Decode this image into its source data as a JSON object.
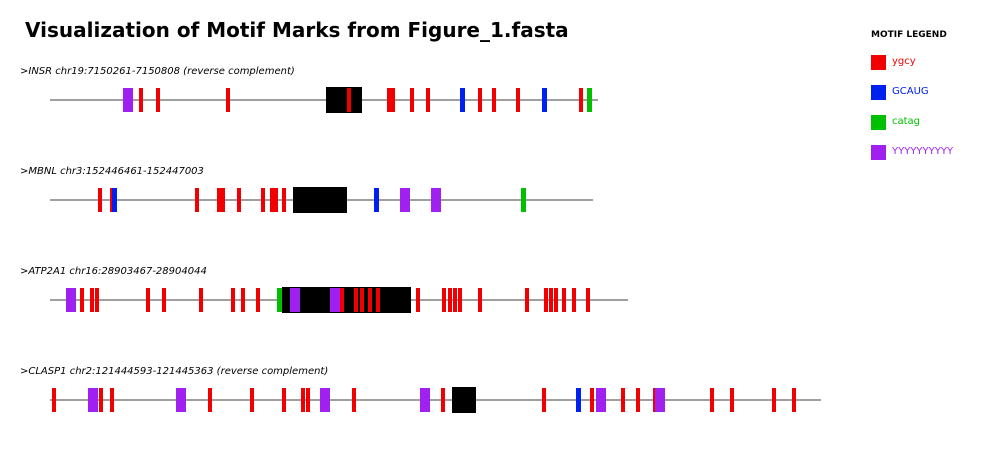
{
  "title": "Visualization of Motif Marks from Figure_1.fasta",
  "legend": {
    "title": "MOTIF LEGEND",
    "items": [
      {
        "label": "ygcy",
        "color": "#f00000"
      },
      {
        "label": "GCAUG",
        "color": "#0020f0"
      },
      {
        "label": "catag",
        "color": "#00c000"
      },
      {
        "label": "YYYYYYYYYY",
        "color": "#a020f0"
      }
    ]
  },
  "exon_color": "#000000",
  "chart_data": {
    "type": "motif-map",
    "sequences": [
      {
        "header": ">INSR chr19:7150261-7150808 (reverse complement)",
        "length": 548,
        "exon": [
          276,
          311
        ],
        "motifs": [
          {
            "motif": "YYYYYYYYYY",
            "start": 73,
            "end": 82
          },
          {
            "motif": "ygcy",
            "start": 89,
            "end": 92
          },
          {
            "motif": "ygcy",
            "start": 106,
            "end": 109
          },
          {
            "motif": "ygcy",
            "start": 176,
            "end": 179
          },
          {
            "motif": "ygcy",
            "start": 297,
            "end": 300
          },
          {
            "motif": "ygcy",
            "start": 337,
            "end": 344
          },
          {
            "motif": "ygcy",
            "start": 360,
            "end": 363
          },
          {
            "motif": "ygcy",
            "start": 376,
            "end": 379
          },
          {
            "motif": "GCAUG",
            "start": 410,
            "end": 414
          },
          {
            "motif": "ygcy",
            "start": 428,
            "end": 431
          },
          {
            "motif": "ygcy",
            "start": 442,
            "end": 445
          },
          {
            "motif": "ygcy",
            "start": 466,
            "end": 469
          },
          {
            "motif": "GCAUG",
            "start": 492,
            "end": 496
          },
          {
            "motif": "ygcy",
            "start": 529,
            "end": 532
          },
          {
            "motif": "catag",
            "start": 537,
            "end": 541
          }
        ]
      },
      {
        "header": ">MBNL chr3:152446461-152447003",
        "length": 543,
        "exon": [
          243,
          296
        ],
        "motifs": [
          {
            "motif": "ygcy",
            "start": 48,
            "end": 51
          },
          {
            "motif": "ygcy",
            "start": 60,
            "end": 63
          },
          {
            "motif": "GCAUG",
            "start": 62,
            "end": 66
          },
          {
            "motif": "ygcy",
            "start": 145,
            "end": 148
          },
          {
            "motif": "ygcy",
            "start": 167,
            "end": 174
          },
          {
            "motif": "ygcy",
            "start": 187,
            "end": 190
          },
          {
            "motif": "ygcy",
            "start": 211,
            "end": 214
          },
          {
            "motif": "ygcy",
            "start": 220,
            "end": 227
          },
          {
            "motif": "ygcy",
            "start": 232,
            "end": 235
          },
          {
            "motif": "GCAUG",
            "start": 324,
            "end": 328
          },
          {
            "motif": "YYYYYYYYYY",
            "start": 350,
            "end": 359
          },
          {
            "motif": "YYYYYYYYYY",
            "start": 381,
            "end": 390
          },
          {
            "motif": "catag",
            "start": 471,
            "end": 475
          }
        ]
      },
      {
        "header": ">ATP2A1 chr16:28903467-28904044",
        "length": 578,
        "exon": [
          232,
          360
        ],
        "motifs": [
          {
            "motif": "YYYYYYYYYY",
            "start": 16,
            "end": 25
          },
          {
            "motif": "ygcy",
            "start": 30,
            "end": 33
          },
          {
            "motif": "ygcy",
            "start": 40,
            "end": 43
          },
          {
            "motif": "ygcy",
            "start": 45,
            "end": 48
          },
          {
            "motif": "ygcy",
            "start": 96,
            "end": 99
          },
          {
            "motif": "ygcy",
            "start": 112,
            "end": 115
          },
          {
            "motif": "ygcy",
            "start": 149,
            "end": 152
          },
          {
            "motif": "ygcy",
            "start": 181,
            "end": 184
          },
          {
            "motif": "ygcy",
            "start": 191,
            "end": 194
          },
          {
            "motif": "ygcy",
            "start": 206,
            "end": 209
          },
          {
            "motif": "catag",
            "start": 227,
            "end": 231
          },
          {
            "motif": "YYYYYYYYYY",
            "start": 240,
            "end": 249
          },
          {
            "motif": "YYYYYYYYYY",
            "start": 280,
            "end": 289
          },
          {
            "motif": "ygcy",
            "start": 290,
            "end": 293
          },
          {
            "motif": "ygcy",
            "start": 304,
            "end": 307
          },
          {
            "motif": "ygcy",
            "start": 310,
            "end": 313
          },
          {
            "motif": "ygcy",
            "start": 318,
            "end": 321
          },
          {
            "motif": "ygcy",
            "start": 326,
            "end": 329
          },
          {
            "motif": "ygcy",
            "start": 366,
            "end": 369
          },
          {
            "motif": "ygcy",
            "start": 392,
            "end": 395
          },
          {
            "motif": "ygcy",
            "start": 398,
            "end": 401
          },
          {
            "motif": "ygcy",
            "start": 403,
            "end": 406
          },
          {
            "motif": "ygcy",
            "start": 408,
            "end": 411
          },
          {
            "motif": "ygcy",
            "start": 428,
            "end": 431
          },
          {
            "motif": "ygcy",
            "start": 475,
            "end": 478
          },
          {
            "motif": "ygcy",
            "start": 494,
            "end": 497
          },
          {
            "motif": "ygcy",
            "start": 499,
            "end": 502
          },
          {
            "motif": "ygcy",
            "start": 504,
            "end": 507
          },
          {
            "motif": "ygcy",
            "start": 512,
            "end": 515
          },
          {
            "motif": "ygcy",
            "start": 522,
            "end": 525
          },
          {
            "motif": "ygcy",
            "start": 536,
            "end": 539
          }
        ]
      },
      {
        "header": ">CLASP1 chr2:121444593-121445363 (reverse complement)",
        "length": 771,
        "exon": [
          402,
          425
        ],
        "motifs": [
          {
            "motif": "ygcy",
            "start": 2,
            "end": 5
          },
          {
            "motif": "YYYYYYYYYY",
            "start": 38,
            "end": 47
          },
          {
            "motif": "ygcy",
            "start": 49,
            "end": 52
          },
          {
            "motif": "ygcy",
            "start": 60,
            "end": 63
          },
          {
            "motif": "YYYYYYYYYY",
            "start": 126,
            "end": 135
          },
          {
            "motif": "ygcy",
            "start": 158,
            "end": 161
          },
          {
            "motif": "ygcy",
            "start": 200,
            "end": 203
          },
          {
            "motif": "ygcy",
            "start": 232,
            "end": 235
          },
          {
            "motif": "ygcy",
            "start": 251,
            "end": 254
          },
          {
            "motif": "ygcy",
            "start": 256,
            "end": 259
          },
          {
            "motif": "YYYYYYYYYY",
            "start": 270,
            "end": 279
          },
          {
            "motif": "ygcy",
            "start": 302,
            "end": 305
          },
          {
            "motif": "YYYYYYYYYY",
            "start": 370,
            "end": 379
          },
          {
            "motif": "ygcy",
            "start": 391,
            "end": 394
          },
          {
            "motif": "ygcy",
            "start": 492,
            "end": 495
          },
          {
            "motif": "GCAUG",
            "start": 526,
            "end": 530
          },
          {
            "motif": "ygcy",
            "start": 540,
            "end": 543
          },
          {
            "motif": "YYYYYYYYYY",
            "start": 546,
            "end": 555
          },
          {
            "motif": "ygcy",
            "start": 571,
            "end": 574
          },
          {
            "motif": "ygcy",
            "start": 586,
            "end": 589
          },
          {
            "motif": "ygcy",
            "start": 603,
            "end": 606
          },
          {
            "motif": "YYYYYYYYYY",
            "start": 605,
            "end": 614
          },
          {
            "motif": "ygcy",
            "start": 660,
            "end": 663
          },
          {
            "motif": "ygcy",
            "start": 680,
            "end": 683
          },
          {
            "motif": "ygcy",
            "start": 722,
            "end": 725
          },
          {
            "motif": "ygcy",
            "start": 742,
            "end": 745
          }
        ]
      }
    ]
  }
}
